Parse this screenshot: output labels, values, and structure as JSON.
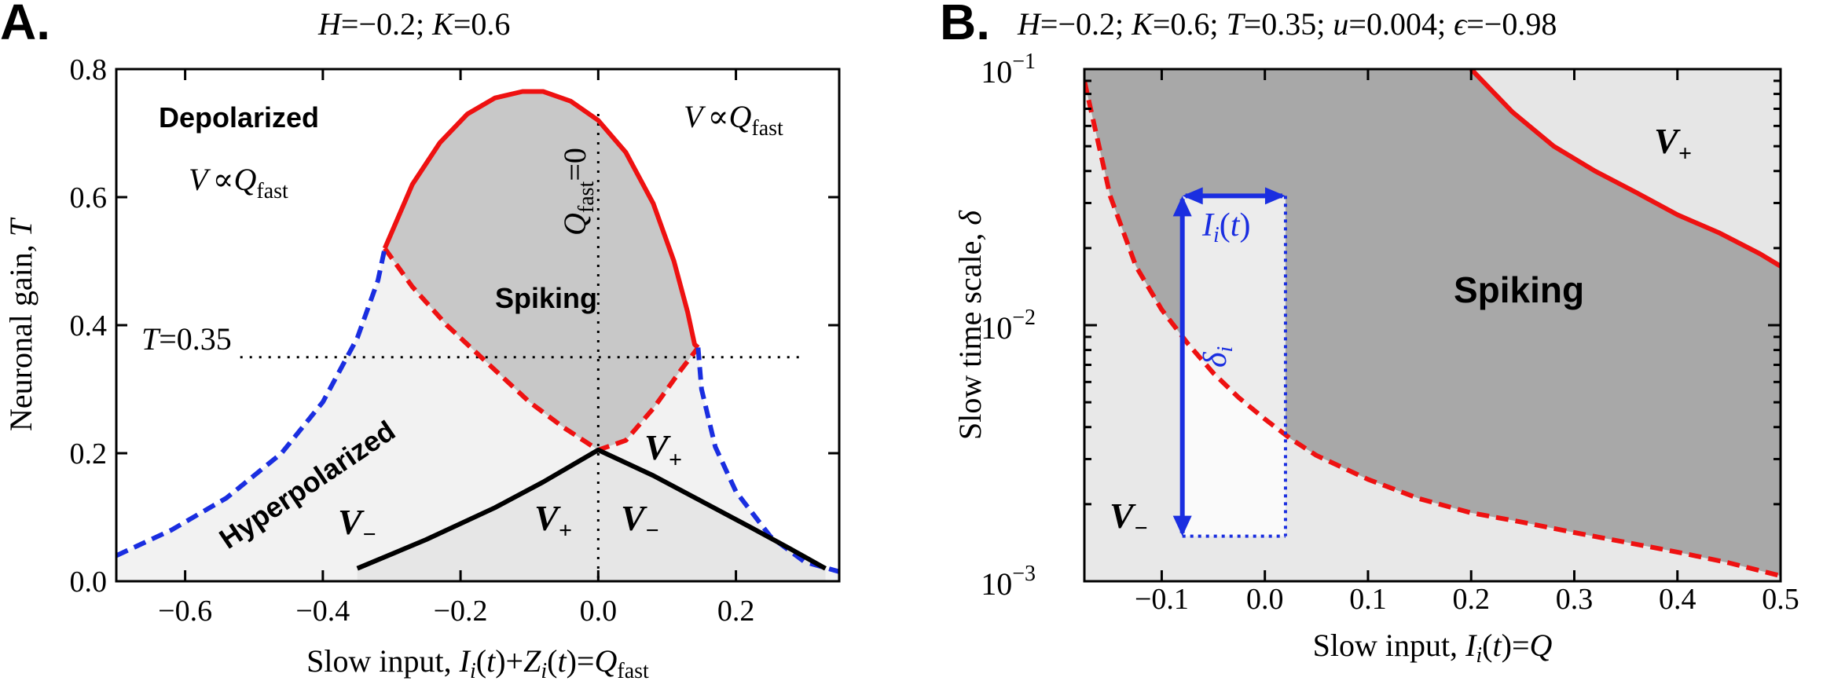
{
  "chart_data": [
    {
      "panel_label": "A.",
      "type": "line",
      "title": "H=−0.2; K=0.6",
      "title_parts": {
        "h": "H",
        "h_val": "=−0.2; ",
        "k": "K",
        "k_val": "=0.6"
      },
      "xlabel": "Slow input, I_i(t)+Z_i(t)=Q_fast",
      "ylabel": "Neuronal gain, T",
      "xlabel_parts": {
        "prefix": "Slow input, ",
        "i": "I",
        "sub_i": "i",
        "t1": "(",
        "t2": "t",
        "t3": ")+",
        "z": "Z",
        "sub_z": "i",
        "t4": "(",
        "t5": "t",
        "t6": ")=",
        "q": "Q",
        "sub_fast": "fast"
      },
      "ylabel_parts": {
        "prefix": "Neuronal gain, ",
        "t": "T"
      },
      "xlim": [
        -0.7,
        0.35
      ],
      "ylim": [
        0.0,
        0.8
      ],
      "xticks": [
        -0.6,
        -0.4,
        -0.2,
        0.0,
        0.2
      ],
      "xtick_labels": [
        "−0.6",
        "−0.4",
        "−0.2",
        "0.0",
        "0.2"
      ],
      "yticks": [
        0.0,
        0.2,
        0.4,
        0.6,
        0.8
      ],
      "ytick_labels": [
        "0.0",
        "0.2",
        "0.4",
        "0.6",
        "0.8"
      ],
      "series": [
        {
          "name": "Spiking boundary (solid red)",
          "color": "#ee1111",
          "style": "solid",
          "x": [
            -0.31,
            -0.27,
            -0.23,
            -0.19,
            -0.15,
            -0.11,
            -0.08,
            -0.04,
            0.0,
            0.04,
            0.08,
            0.11,
            0.13,
            0.14,
            0.145
          ],
          "y": [
            0.52,
            0.62,
            0.685,
            0.73,
            0.755,
            0.765,
            0.765,
            0.75,
            0.72,
            0.67,
            0.59,
            0.5,
            0.42,
            0.37,
            0.365
          ]
        },
        {
          "name": "Spiking lower boundary (dashed red)",
          "color": "#ee1111",
          "style": "dashed",
          "x": [
            -0.31,
            -0.27,
            -0.22,
            -0.16,
            -0.1,
            -0.05,
            0.0,
            0.04,
            0.08,
            0.12,
            0.145
          ],
          "y": [
            0.52,
            0.46,
            0.4,
            0.34,
            0.28,
            0.24,
            0.205,
            0.22,
            0.27,
            0.33,
            0.365
          ]
        },
        {
          "name": "Left saddle-node (dashed blue)",
          "color": "#1a2ee0",
          "style": "dashed",
          "x": [
            -0.7,
            -0.62,
            -0.54,
            -0.46,
            -0.4,
            -0.35,
            -0.32,
            -0.31
          ],
          "y": [
            0.04,
            0.08,
            0.13,
            0.2,
            0.28,
            0.38,
            0.47,
            0.52
          ]
        },
        {
          "name": "Right saddle-node (dashed blue)",
          "color": "#1a2ee0",
          "style": "dashed",
          "x": [
            0.145,
            0.15,
            0.17,
            0.2,
            0.25,
            0.3,
            0.35
          ],
          "y": [
            0.365,
            0.3,
            0.21,
            0.14,
            0.07,
            0.03,
            0.015
          ]
        },
        {
          "name": "Bistability boundary (solid black)",
          "color": "#000000",
          "style": "solid",
          "x": [
            -0.35,
            -0.25,
            -0.15,
            -0.08,
            0.0,
            0.08,
            0.15,
            0.22,
            0.28,
            0.33
          ],
          "y": [
            0.02,
            0.065,
            0.115,
            0.155,
            0.205,
            0.165,
            0.125,
            0.085,
            0.05,
            0.02
          ]
        }
      ],
      "reference_lines": [
        {
          "orientation": "vertical",
          "value": 0.0,
          "label": "Q_fast=0"
        },
        {
          "orientation": "horizontal",
          "value": 0.35,
          "label": "T=0.35"
        }
      ],
      "annotations": {
        "depolarized": "Depolarized",
        "v_q": "V",
        "prop": "∝",
        "q": "Q",
        "fast": "fast",
        "spiking": "Spiking",
        "hyperpolarized": "Hyperpolarized",
        "v": "V",
        "minus": "−",
        "plus": "+",
        "qfast_eq": "=0",
        "t_ref": "T",
        "t_ref_val": "=0.35"
      }
    },
    {
      "panel_label": "B.",
      "type": "line",
      "title": "H=−0.2; K=0.6; T=0.35; u=0.004; ϵ=−0.98",
      "title_parts": {
        "h": "H",
        "h_val": "=−0.2; ",
        "k": "K",
        "k_val": "=0.6; ",
        "t": "T",
        "t_val": "=0.35; ",
        "u": "u",
        "u_val": "=0.004; ",
        "e": "ϵ",
        "e_val": "=−0.98"
      },
      "xlabel": "Slow input, I_i(t)=Q",
      "ylabel": "Slow time scale, δ",
      "xlabel_parts": {
        "prefix": "Slow input, ",
        "i": "I",
        "sub_i": "i",
        "t1": "(",
        "t2": "t",
        "t3": ")=",
        "q": "Q"
      },
      "ylabel_parts": {
        "prefix": "Slow time scale, ",
        "d": "δ"
      },
      "yscale": "log",
      "xlim": [
        -0.175,
        0.5
      ],
      "ylim": [
        0.001,
        0.1
      ],
      "xticks": [
        -0.1,
        0.0,
        0.1,
        0.2,
        0.3,
        0.4,
        0.5
      ],
      "xtick_labels": [
        "−0.1",
        "0.0",
        "0.1",
        "0.2",
        "0.3",
        "0.4",
        "0.5"
      ],
      "ytick_base": "10",
      "ytick_exps": [
        "−1",
        "−2",
        "−3"
      ],
      "series": [
        {
          "name": "Upper boundary (solid red)",
          "color": "#ee1111",
          "style": "solid",
          "x": [
            0.2,
            0.24,
            0.28,
            0.32,
            0.36,
            0.4,
            0.44,
            0.48,
            0.5
          ],
          "y": [
            0.1,
            0.068,
            0.05,
            0.04,
            0.033,
            0.027,
            0.023,
            0.019,
            0.017
          ]
        },
        {
          "name": "Lower boundary (dashed red)",
          "color": "#ee1111",
          "style": "dashed",
          "x": [
            -0.175,
            -0.15,
            -0.125,
            -0.1,
            -0.075,
            -0.05,
            -0.025,
            0.0,
            0.025,
            0.05,
            0.1,
            0.15,
            0.2,
            0.25,
            0.3,
            0.35,
            0.4,
            0.45,
            0.5
          ],
          "y": [
            0.09,
            0.032,
            0.017,
            0.0115,
            0.0085,
            0.0065,
            0.0052,
            0.0043,
            0.0036,
            0.0031,
            0.0025,
            0.0021,
            0.00185,
            0.0017,
            0.00155,
            0.00142,
            0.0013,
            0.00118,
            0.00105
          ]
        }
      ],
      "inset_box": {
        "x_range": [
          -0.08,
          0.02
        ],
        "y_range": [
          0.0015,
          0.032
        ]
      },
      "annotations": {
        "spiking": "Spiking",
        "v": "V",
        "plus": "+",
        "minus": "−",
        "ii": "I",
        "ii_sub": "i",
        "ii_t1": "(",
        "ii_t2": "t",
        "ii_t3": ")",
        "delta": "δ",
        "delta_sub": "i"
      }
    }
  ]
}
